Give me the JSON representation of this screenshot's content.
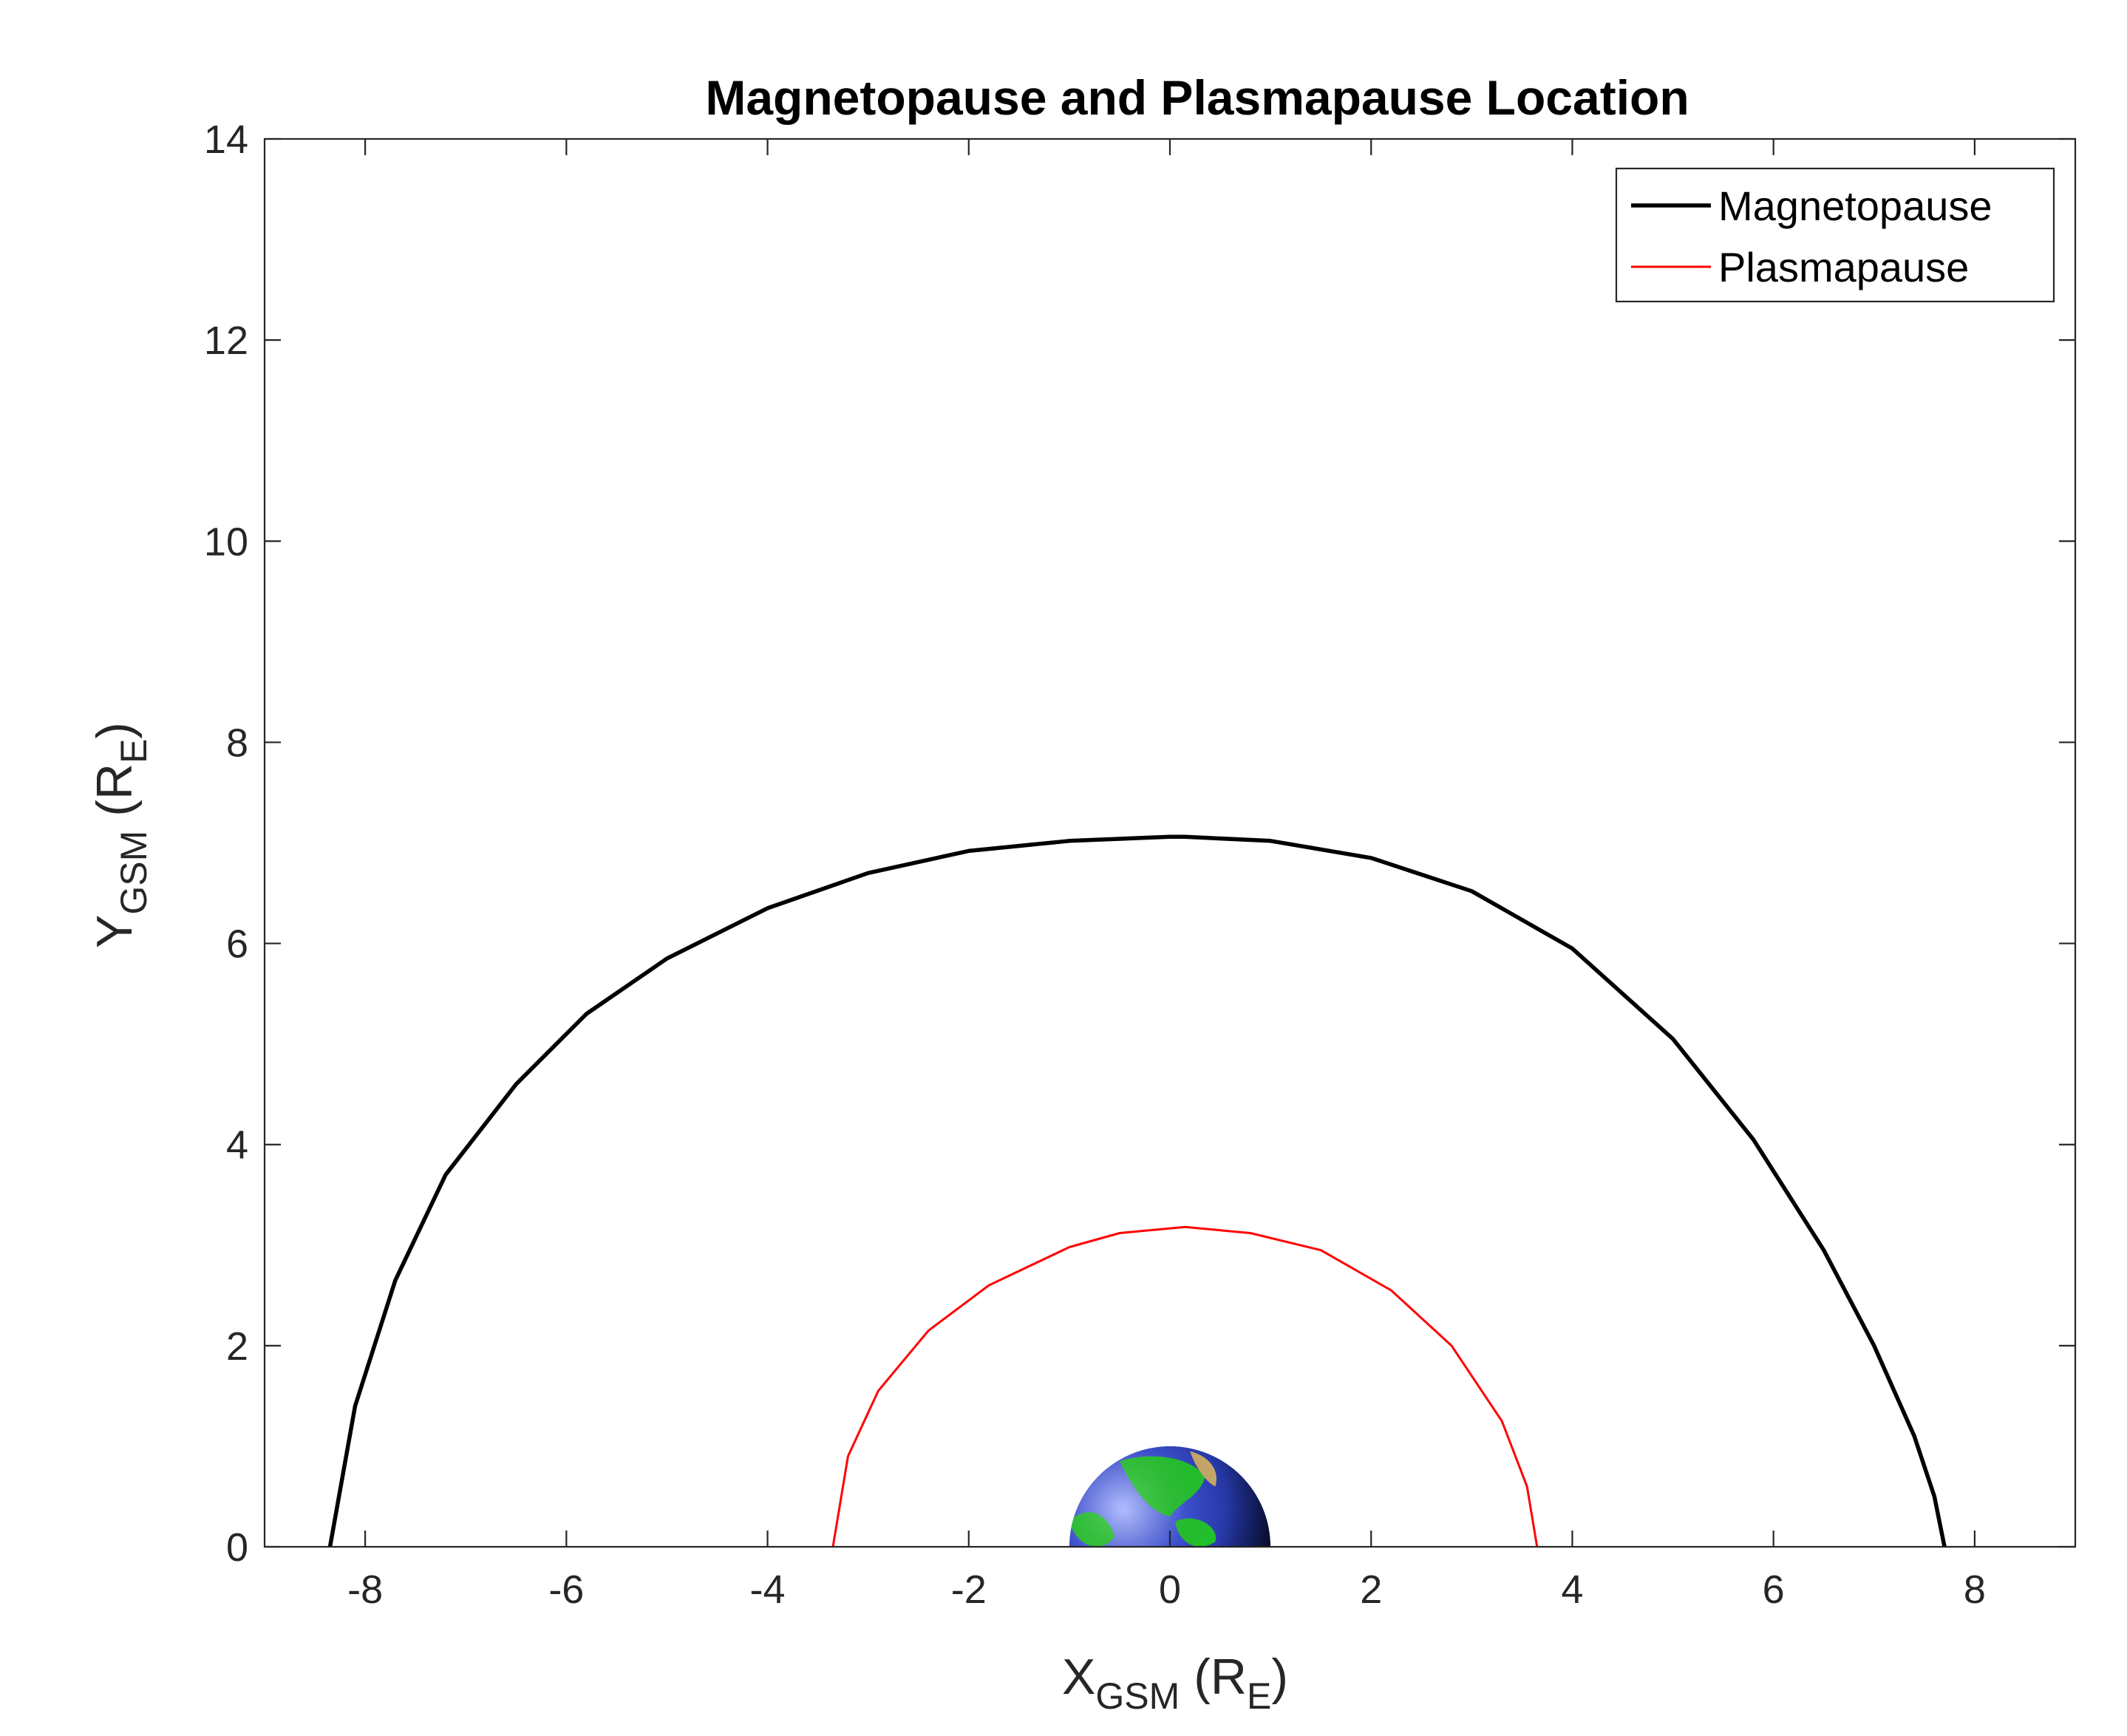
{
  "chart_data": {
    "type": "line",
    "title": "Magnetopause and Plasmapause Location",
    "xlabel": {
      "main": "X",
      "sub": "GSM",
      "open": " (R",
      "unit_sub": "E",
      "close": ")"
    },
    "ylabel": {
      "main": "Y",
      "sub": "GSM",
      "open": " (R",
      "unit_sub": "E",
      "close": ")"
    },
    "xlim": [
      -9,
      9
    ],
    "ylim": [
      0,
      14
    ],
    "xticks": [
      -8,
      -6,
      -4,
      -2,
      0,
      2,
      4,
      6,
      8
    ],
    "yticks": [
      0,
      2,
      4,
      6,
      8,
      10,
      12,
      14
    ],
    "xtick_labels": [
      "-8",
      "-6",
      "-4",
      "-2",
      "0",
      "2",
      "4",
      "6",
      "8"
    ],
    "ytick_labels": [
      "0",
      "2",
      "4",
      "6",
      "8",
      "10",
      "12",
      "14"
    ],
    "grid": false,
    "legend_position": "top-right",
    "series": [
      {
        "name": "Magnetopause",
        "color": "#000000",
        "x": [
          -8.35,
          -8.1,
          -7.7,
          -7.2,
          -6.5,
          -5.8,
          -5.0,
          -4.0,
          -3.0,
          -2.0,
          -1.0,
          0.0,
          0.15,
          1.0,
          2.0,
          3.0,
          4.0,
          5.0,
          5.8,
          6.5,
          7.0,
          7.4,
          7.6,
          7.7
        ],
        "y": [
          0.0,
          1.4,
          2.65,
          3.7,
          4.6,
          5.3,
          5.85,
          6.35,
          6.7,
          6.92,
          7.02,
          7.06,
          7.06,
          7.02,
          6.85,
          6.52,
          5.95,
          5.05,
          4.05,
          2.95,
          2.0,
          1.1,
          0.5,
          0.0
        ]
      },
      {
        "name": "Plasmapause",
        "color": "#ff0000",
        "x": [
          -3.35,
          -3.2,
          -2.9,
          -2.4,
          -1.8,
          -1.0,
          -0.5,
          0.15,
          0.8,
          1.5,
          2.2,
          2.8,
          3.3,
          3.55,
          3.65
        ],
        "y": [
          0.0,
          0.9,
          1.55,
          2.15,
          2.6,
          2.98,
          3.12,
          3.18,
          3.12,
          2.95,
          2.55,
          2.0,
          1.25,
          0.6,
          0.0
        ]
      }
    ],
    "earth": {
      "x": 0,
      "y": 0,
      "radius": 1,
      "colors": [
        "#3a4fd8",
        "#22c42c",
        "#c8a86a",
        "#000814"
      ]
    }
  }
}
